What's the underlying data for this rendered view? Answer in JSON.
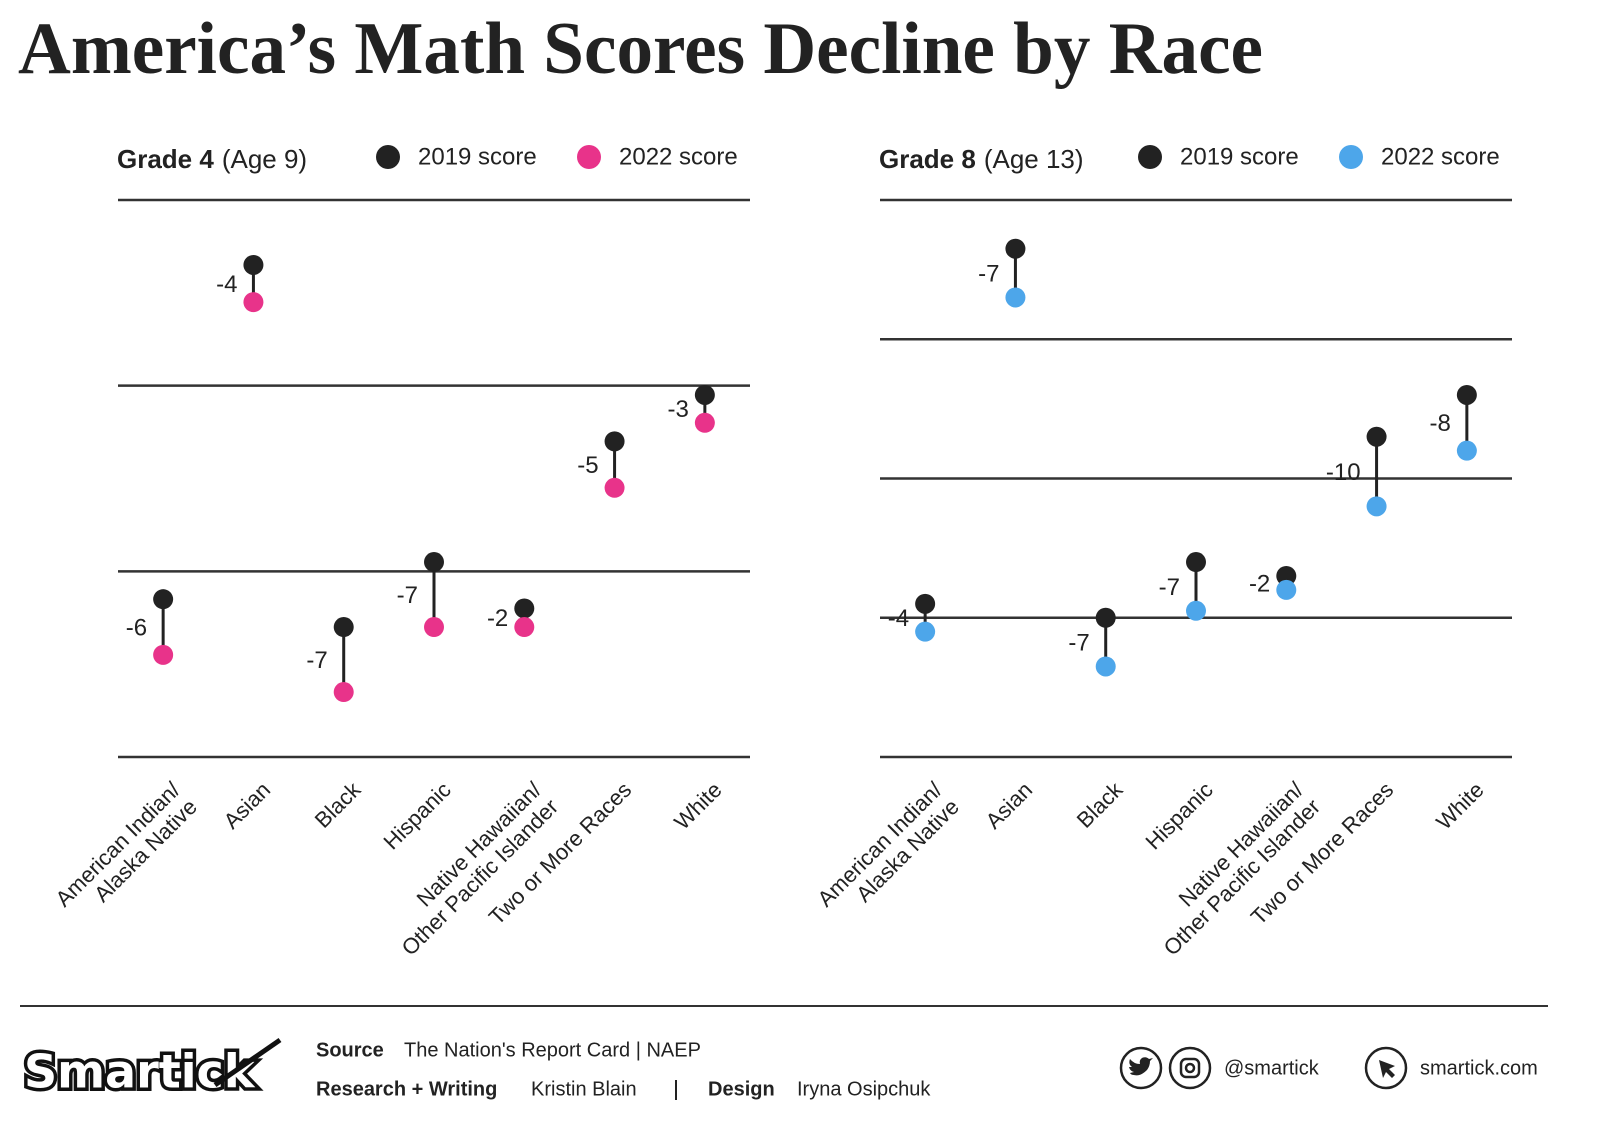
{
  "title": "America’s Math Scores Decline by Race",
  "chart_data": [
    {
      "type": "dumbbell",
      "subtitle_bold": "Grade 4",
      "subtitle": "(Age 9)",
      "categories": [
        "American Indian/\nAlaska Native",
        "Asian",
        "Black",
        "Hispanic",
        "Native Hawaiian/\nOther Pacific Islander",
        "Two or More Races",
        "White"
      ],
      "series": [
        {
          "name": "2019 score",
          "color": "#222222",
          "values": [
            227,
            263,
            224,
            231,
            226,
            244,
            249
          ]
        },
        {
          "name": "2022 score",
          "color": "#e8338a",
          "values": [
            221,
            259,
            217,
            224,
            224,
            239,
            246
          ]
        }
      ],
      "differences": [
        -6,
        -4,
        -7,
        -7,
        -2,
        -5,
        -3
      ],
      "ylim": [
        210,
        270
      ],
      "yticks": [
        210,
        230,
        250,
        270
      ],
      "grid": true
    },
    {
      "type": "dumbbell",
      "subtitle_bold": "Grade 8",
      "subtitle": "(Age 13)",
      "categories": [
        "American Indian/\nAlaska Native",
        "Asian",
        "Black",
        "Hispanic",
        "Native Hawaiian/\nOther Pacific Islander",
        "Two or More Races",
        "White"
      ],
      "series": [
        {
          "name": "2019 score",
          "color": "#222222",
          "values": [
            262,
            313,
            260,
            268,
            266,
            286,
            292
          ]
        },
        {
          "name": "2022 score",
          "color": "#4da6ea",
          "values": [
            258,
            306,
            253,
            261,
            264,
            276,
            284
          ]
        }
      ],
      "differences": [
        -4,
        -7,
        -7,
        -7,
        -2,
        -10,
        -8
      ],
      "ylim": [
        240,
        320
      ],
      "yticks": [
        240,
        260,
        280,
        300,
        320
      ],
      "grid": true
    }
  ],
  "footer": {
    "brand": "Smartick",
    "source_label": "Source",
    "source": "The Nation's Report Card | NAEP",
    "research_label": "Research + Writing",
    "research": "Kristin Blain",
    "design_label": "Design",
    "design": "Iryna Osipchuk",
    "handle": "@smartick",
    "website": "smartick.com"
  }
}
